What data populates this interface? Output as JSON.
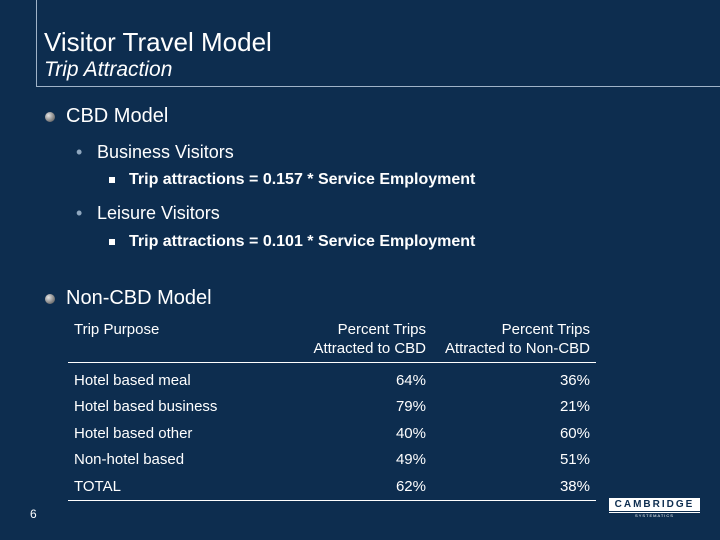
{
  "header": {
    "title": "Visitor Travel Model",
    "subtitle": "Trip Attraction"
  },
  "cbd": {
    "heading": "CBD Model",
    "business": {
      "label": "Business Visitors",
      "formula": "Trip attractions = 0.157 * Service Employment"
    },
    "leisure": {
      "label": "Leisure Visitors",
      "formula": "Trip attractions = 0.101 * Service Employment"
    }
  },
  "noncbd": {
    "heading": "Non-CBD Model",
    "table": {
      "headers": [
        "Trip Purpose",
        "Percent Trips Attracted to CBD",
        "Percent Trips Attracted to Non-CBD"
      ],
      "header_lines": [
        [
          "Trip Purpose"
        ],
        [
          "Percent Trips",
          "Attracted to CBD"
        ],
        [
          "Percent Trips",
          "Attracted to Non-CBD"
        ]
      ],
      "rows": [
        [
          "Hotel based meal",
          "64%",
          "36%"
        ],
        [
          "Hotel based business",
          "79%",
          "21%"
        ],
        [
          "Hotel based other",
          "40%",
          "60%"
        ],
        [
          "Non-hotel based",
          "49%",
          "51%"
        ],
        [
          "TOTAL",
          "62%",
          "38%"
        ]
      ]
    }
  },
  "footer": {
    "page_number": "6",
    "logo_text": "CAMBRIDGE",
    "logo_subtext": "SYSTEMATICS"
  },
  "colors": {
    "background": "#0d2d4f",
    "text": "#ffffff",
    "rule": "#9fb3c8"
  }
}
